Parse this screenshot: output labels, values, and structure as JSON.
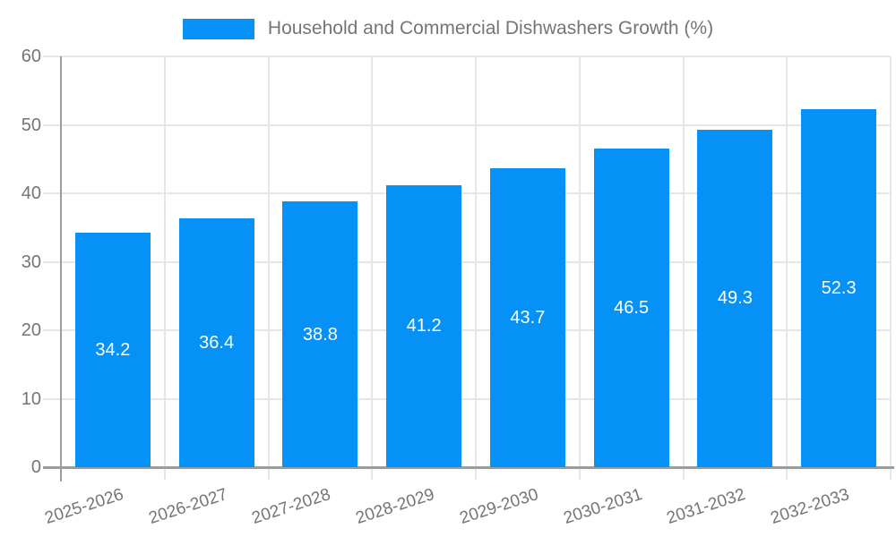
{
  "legend": {
    "series_label": "Household and Commercial Dishwashers Growth (%)"
  },
  "chart_data": {
    "type": "bar",
    "title": "Household and Commercial Dishwashers Growth (%)",
    "categories": [
      "2025-2026",
      "2026-2027",
      "2027-2028",
      "2028-2029",
      "2029-2030",
      "2030-2031",
      "2031-2032",
      "2032-2033"
    ],
    "series": [
      {
        "name": "Household and Commercial Dishwashers Growth (%)",
        "values": [
          34.2,
          36.4,
          38.8,
          41.2,
          43.7,
          46.5,
          49.3,
          52.3
        ]
      }
    ],
    "value_labels": [
      34.2,
      36.4,
      38.8,
      41.2,
      43.7,
      46.5,
      49.3,
      52.3
    ],
    "value_label_position": "inside-center",
    "xlabel": "",
    "ylabel": "",
    "ylim": [
      0,
      60
    ],
    "yticks": [
      0,
      10,
      20,
      30,
      40,
      50,
      60
    ],
    "grid": true,
    "legend_position": "top-center",
    "x_label_rotation_deg": -18,
    "colors": {
      "bar": "#0591f5",
      "value_label_text": "#ffffff",
      "axis_text": "#757575",
      "gridline": "#e6e6e6",
      "axis_line": "#9c9c9c",
      "background": "#ffffff"
    }
  }
}
